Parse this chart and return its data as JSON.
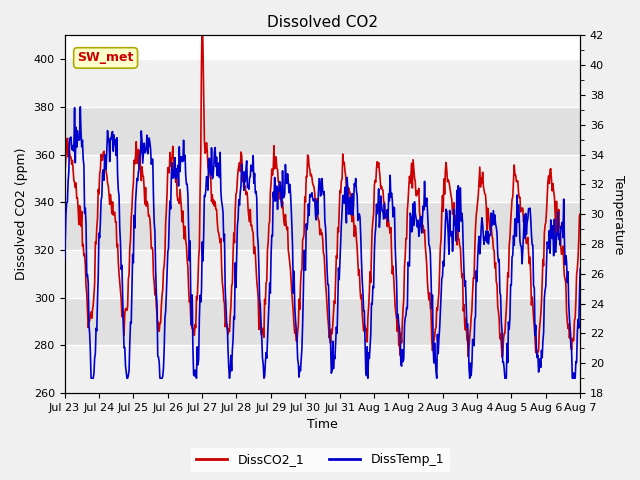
{
  "title": "Dissolved CO2",
  "xlabel": "Time",
  "ylabel_left": "Dissolved CO2 (ppm)",
  "ylabel_right": "Temperature",
  "legend_labels": [
    "DissCO2_1",
    "DissTemp_1"
  ],
  "line_colors": [
    "#cc0000",
    "#0000cc"
  ],
  "annotation_text": "SW_met",
  "annotation_facecolor": "#ffffcc",
  "annotation_edgecolor": "#aaaa00",
  "annotation_textcolor": "#cc0000",
  "ylim_left": [
    260,
    410
  ],
  "ylim_right": [
    18,
    42
  ],
  "yticks_left": [
    260,
    280,
    300,
    320,
    340,
    360,
    380,
    400
  ],
  "yticks_right": [
    18,
    20,
    22,
    24,
    26,
    28,
    30,
    32,
    34,
    36,
    38,
    40,
    42
  ],
  "bg_color": "#f0f0f0",
  "plot_bg_light": "#f0f0f0",
  "plot_bg_dark": "#e0e0e0",
  "grid_color": "#ffffff",
  "xtick_labels": [
    "Jul 23",
    "Jul 24",
    "Jul 25",
    "Jul 26",
    "Jul 27",
    "Jul 28",
    "Jul 29",
    "Jul 30",
    "Jul 31",
    "Aug 1",
    "Aug 2",
    "Aug 3",
    "Aug 4",
    "Aug 5",
    "Aug 6",
    "Aug 7"
  ],
  "n_days": 15
}
